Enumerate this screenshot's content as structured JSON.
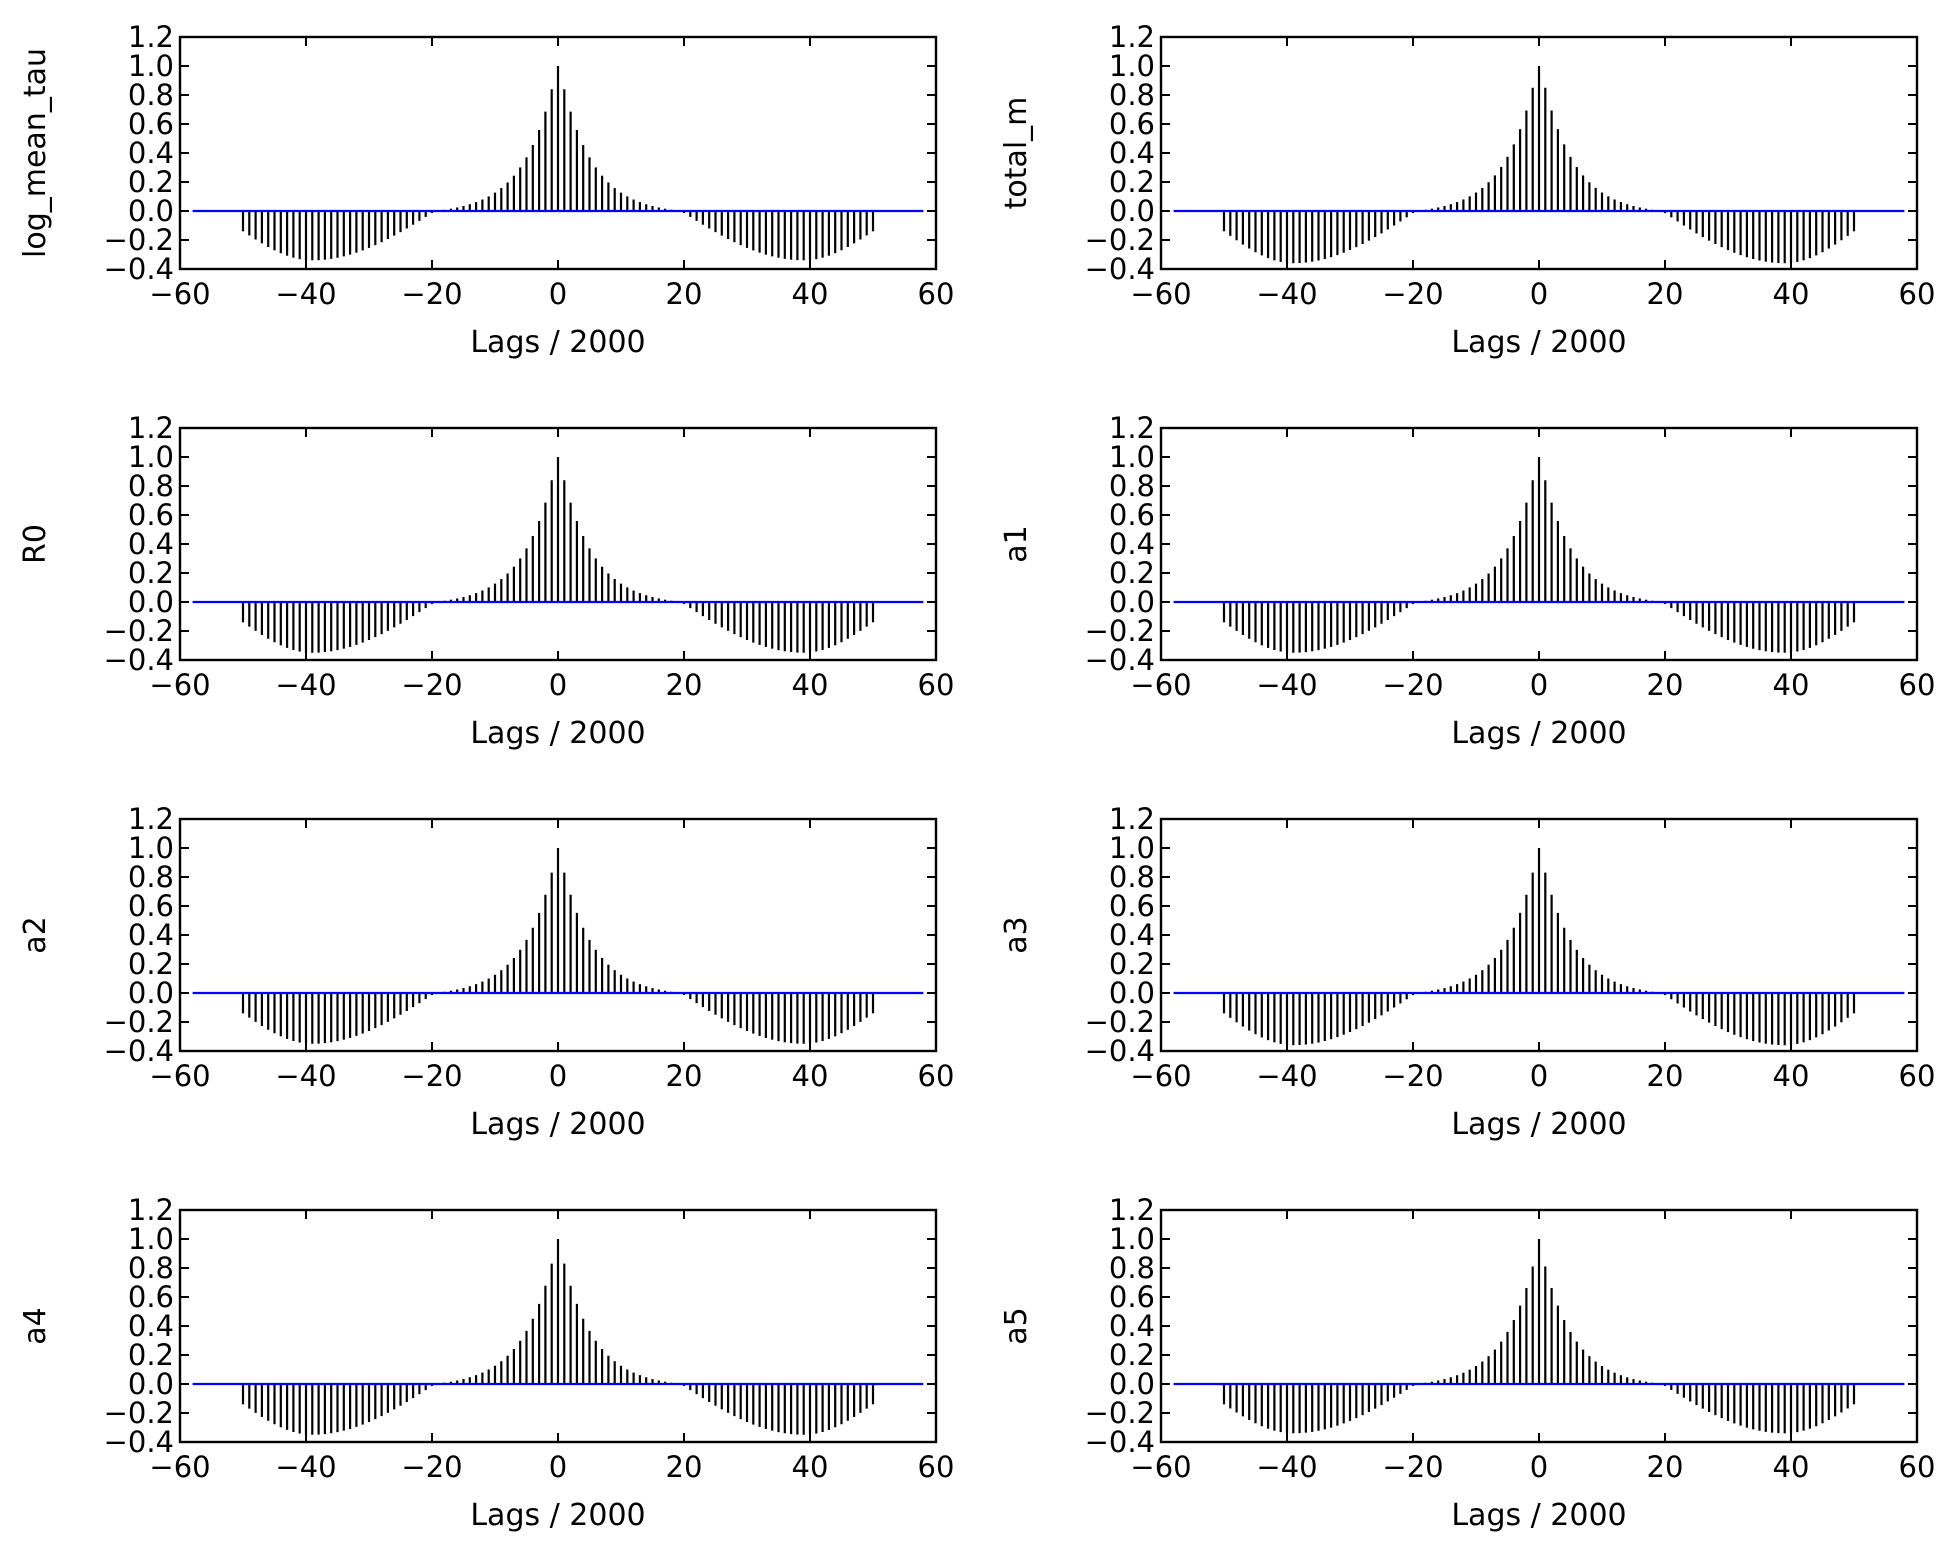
{
  "figure": {
    "colors": {
      "stems": "#000000",
      "baseline": "#0000ff",
      "axes": "#000000",
      "background": "#ffffff"
    }
  },
  "chart_data": [
    {
      "type": "bar",
      "style": "stem",
      "ylabel": "log_mean_tau",
      "xlabel": "Lags / 2000",
      "xlim": [
        -60,
        60
      ],
      "ylim": [
        -0.4,
        1.2
      ],
      "xticks": [
        "−60",
        "−40",
        "−20",
        "0",
        "20",
        "40",
        "60"
      ],
      "yticks": [
        "−0.4",
        "−0.2",
        "0.0",
        "0.2",
        "0.4",
        "0.6",
        "0.8",
        "1.0",
        "1.2"
      ],
      "maxlags": 50,
      "baseline": 0,
      "acf_shape": {
        "peak": 1.0,
        "lag1": 0.84,
        "trough": -0.34,
        "trough_lag": 39,
        "zero_cross": 19.5,
        "edge": -0.14
      }
    },
    {
      "type": "bar",
      "style": "stem",
      "ylabel": "total_m",
      "xlabel": "Lags / 2000",
      "xlim": [
        -60,
        60
      ],
      "ylim": [
        -0.4,
        1.2
      ],
      "xticks": [
        "−60",
        "−40",
        "−20",
        "0",
        "20",
        "40",
        "60"
      ],
      "yticks": [
        "−0.4",
        "−0.2",
        "0.0",
        "0.2",
        "0.4",
        "0.6",
        "0.8",
        "1.0",
        "1.2"
      ],
      "maxlags": 50,
      "baseline": 0,
      "acf_shape": {
        "peak": 1.0,
        "lag1": 0.85,
        "trough": -0.36,
        "trough_lag": 39,
        "zero_cross": 19.5,
        "edge": -0.14
      }
    },
    {
      "type": "bar",
      "style": "stem",
      "ylabel": "R0",
      "xlabel": "Lags / 2000",
      "xlim": [
        -60,
        60
      ],
      "ylim": [
        -0.4,
        1.2
      ],
      "xticks": [
        "−60",
        "−40",
        "−20",
        "0",
        "20",
        "40",
        "60"
      ],
      "yticks": [
        "−0.4",
        "−0.2",
        "0.0",
        "0.2",
        "0.4",
        "0.6",
        "0.8",
        "1.0",
        "1.2"
      ],
      "maxlags": 50,
      "baseline": 0,
      "acf_shape": {
        "peak": 1.0,
        "lag1": 0.84,
        "trough": -0.35,
        "trough_lag": 39,
        "zero_cross": 19.5,
        "edge": -0.14
      }
    },
    {
      "type": "bar",
      "style": "stem",
      "ylabel": "a1",
      "xlabel": "Lags / 2000",
      "xlim": [
        -60,
        60
      ],
      "ylim": [
        -0.4,
        1.2
      ],
      "xticks": [
        "−60",
        "−40",
        "−20",
        "0",
        "20",
        "40",
        "60"
      ],
      "yticks": [
        "−0.4",
        "−0.2",
        "0.0",
        "0.2",
        "0.4",
        "0.6",
        "0.8",
        "1.0",
        "1.2"
      ],
      "maxlags": 50,
      "baseline": 0,
      "acf_shape": {
        "peak": 1.0,
        "lag1": 0.84,
        "trough": -0.35,
        "trough_lag": 39,
        "zero_cross": 19.5,
        "edge": -0.14
      }
    },
    {
      "type": "bar",
      "style": "stem",
      "ylabel": "a2",
      "xlabel": "Lags / 2000",
      "xlim": [
        -60,
        60
      ],
      "ylim": [
        -0.4,
        1.2
      ],
      "xticks": [
        "−60",
        "−40",
        "−20",
        "0",
        "20",
        "40",
        "60"
      ],
      "yticks": [
        "−0.4",
        "−0.2",
        "0.0",
        "0.2",
        "0.4",
        "0.6",
        "0.8",
        "1.0",
        "1.2"
      ],
      "maxlags": 50,
      "baseline": 0,
      "acf_shape": {
        "peak": 1.0,
        "lag1": 0.83,
        "trough": -0.35,
        "trough_lag": 39,
        "zero_cross": 19.5,
        "edge": -0.14
      }
    },
    {
      "type": "bar",
      "style": "stem",
      "ylabel": "a3",
      "xlabel": "Lags / 2000",
      "xlim": [
        -60,
        60
      ],
      "ylim": [
        -0.4,
        1.2
      ],
      "xticks": [
        "−60",
        "−40",
        "−20",
        "0",
        "20",
        "40",
        "60"
      ],
      "yticks": [
        "−0.4",
        "−0.2",
        "0.0",
        "0.2",
        "0.4",
        "0.6",
        "0.8",
        "1.0",
        "1.2"
      ],
      "maxlags": 50,
      "baseline": 0,
      "acf_shape": {
        "peak": 1.0,
        "lag1": 0.83,
        "trough": -0.36,
        "trough_lag": 39,
        "zero_cross": 19.5,
        "edge": -0.14
      }
    },
    {
      "type": "bar",
      "style": "stem",
      "ylabel": "a4",
      "xlabel": "Lags / 2000",
      "xlim": [
        -60,
        60
      ],
      "ylim": [
        -0.4,
        1.2
      ],
      "xticks": [
        "−60",
        "−40",
        "−20",
        "0",
        "20",
        "40",
        "60"
      ],
      "yticks": [
        "−0.4",
        "−0.2",
        "0.0",
        "0.2",
        "0.4",
        "0.6",
        "0.8",
        "1.0",
        "1.2"
      ],
      "maxlags": 50,
      "baseline": 0,
      "acf_shape": {
        "peak": 1.0,
        "lag1": 0.83,
        "trough": -0.35,
        "trough_lag": 39,
        "zero_cross": 19.5,
        "edge": -0.14
      }
    },
    {
      "type": "bar",
      "style": "stem",
      "ylabel": "a5",
      "xlabel": "Lags / 2000",
      "xlim": [
        -60,
        60
      ],
      "ylim": [
        -0.4,
        1.2
      ],
      "xticks": [
        "−60",
        "−40",
        "−20",
        "0",
        "20",
        "40",
        "60"
      ],
      "yticks": [
        "−0.4",
        "−0.2",
        "0.0",
        "0.2",
        "0.4",
        "0.6",
        "0.8",
        "1.0",
        "1.2"
      ],
      "maxlags": 50,
      "baseline": 0,
      "acf_shape": {
        "peak": 1.0,
        "lag1": 0.81,
        "trough": -0.34,
        "trough_lag": 39,
        "zero_cross": 19.5,
        "edge": -0.14
      }
    }
  ]
}
